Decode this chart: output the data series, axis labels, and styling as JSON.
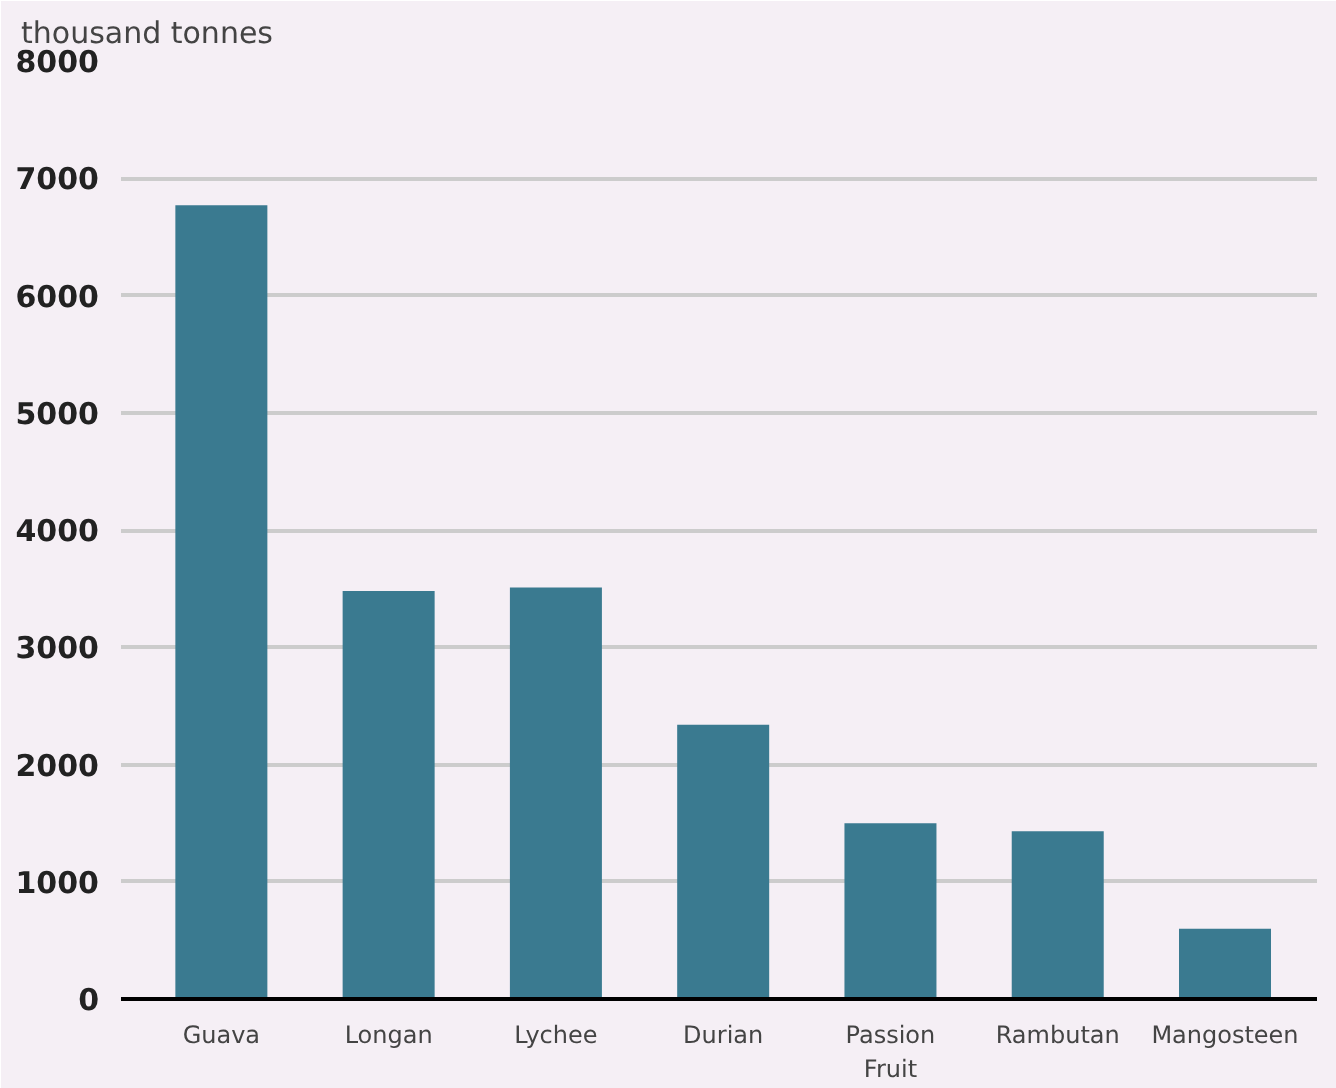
{
  "chart_data": {
    "type": "bar",
    "ylabel": "thousand tonnes",
    "categories": [
      "Guava",
      "Longan",
      "Lychee",
      "Durian",
      "Passion Fruit",
      "Rambutan",
      "Mangosteen"
    ],
    "values": [
      6770,
      3480,
      3510,
      2340,
      1500,
      1430,
      600
    ],
    "color": "#3a7a90",
    "ylim": [
      0,
      8000
    ],
    "yticks": [
      0,
      1000,
      2000,
      3000,
      4000,
      5000,
      6000,
      7000,
      8000
    ],
    "grid": "y"
  }
}
